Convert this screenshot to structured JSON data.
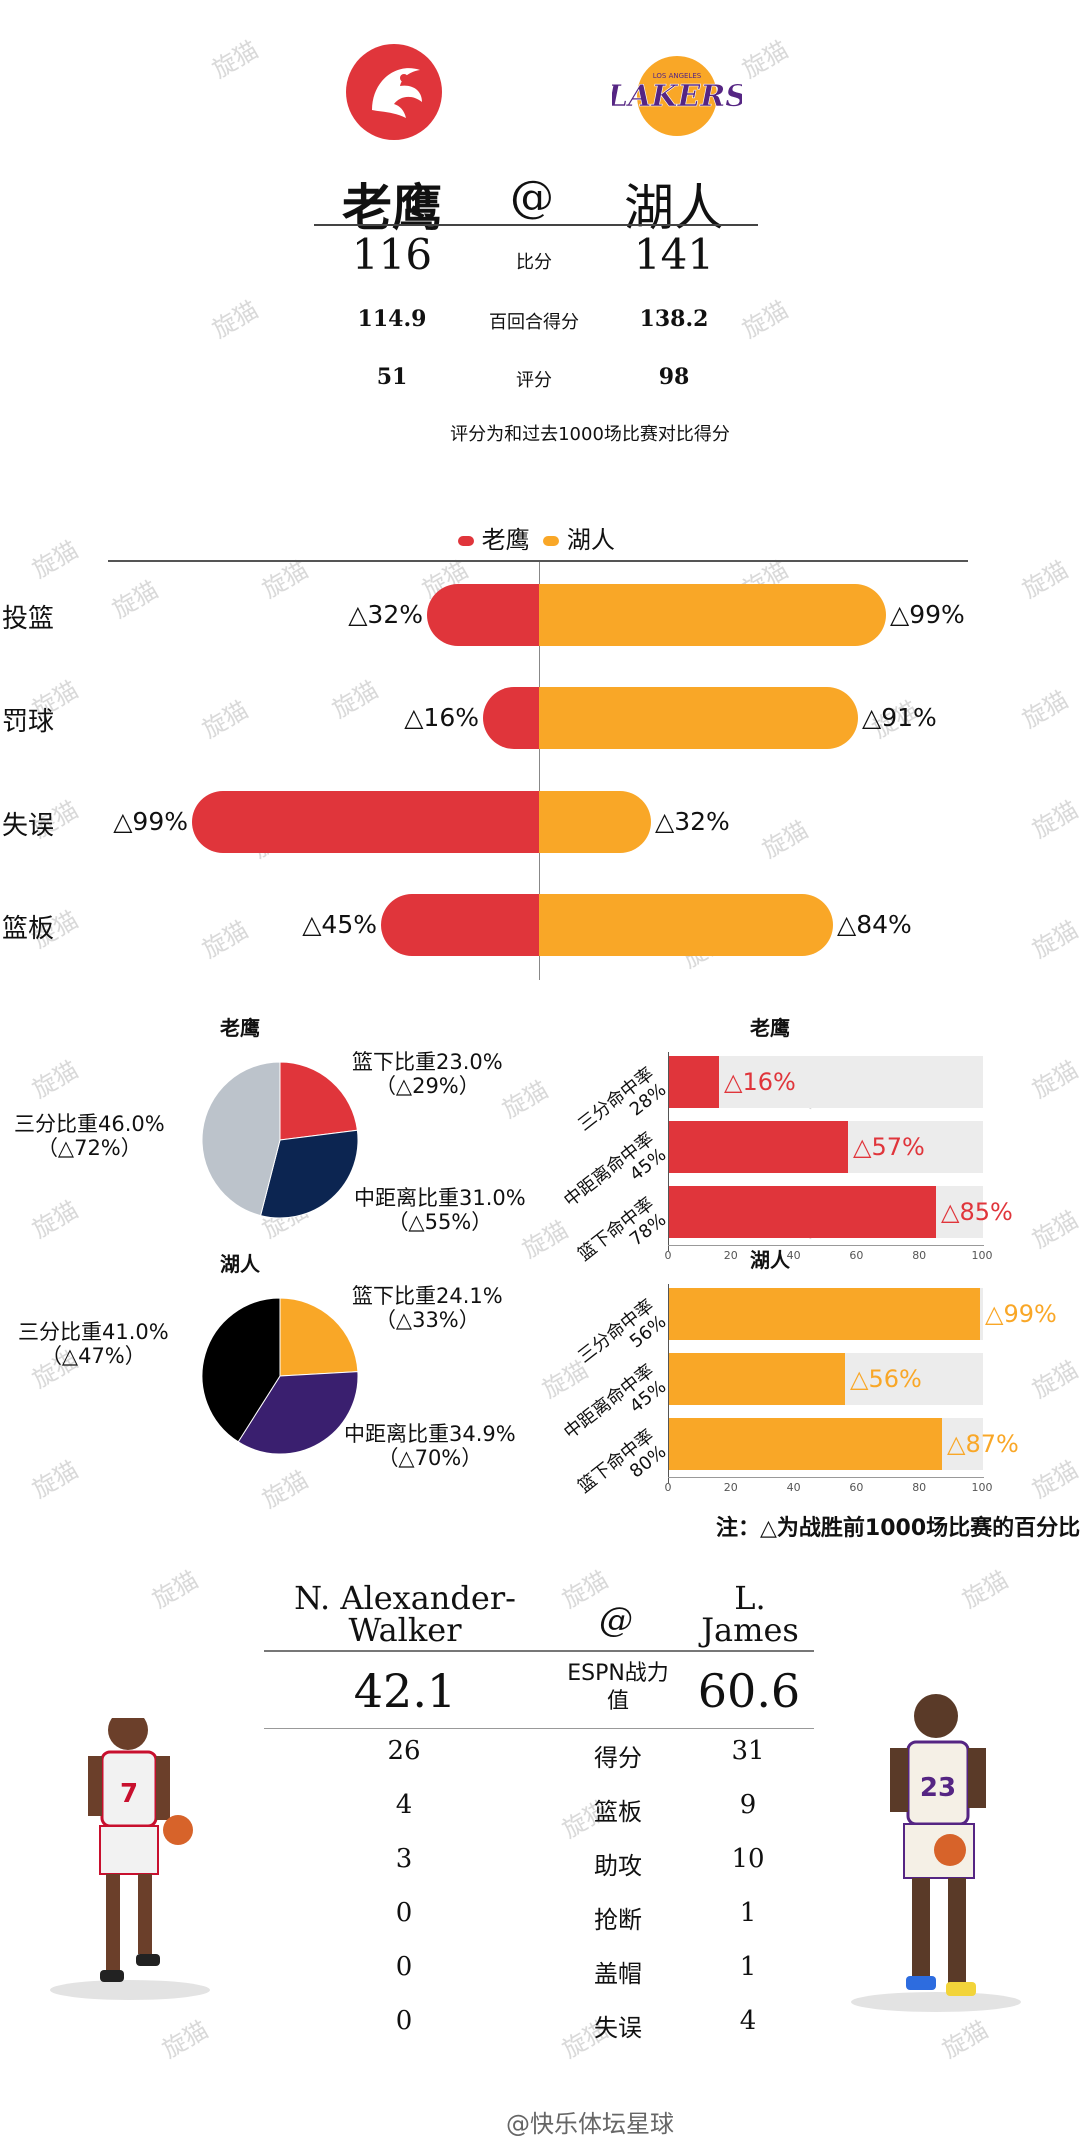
{
  "header": {
    "team_left": "老鹰",
    "at": "@",
    "team_right": "湖人",
    "logo_right_text": "LAKERS",
    "logo_right_small": "LOS ANGELES",
    "rows": [
      {
        "left": "116",
        "label": "比分",
        "right": "141"
      },
      {
        "left": "114.9",
        "label": "百回合得分",
        "right": "138.2"
      },
      {
        "left": "51",
        "label": "评分",
        "right": "98"
      }
    ],
    "note": "评分为和过去1000场比赛对比得分",
    "colors": {
      "hawks": "#e0353b",
      "lakers": "#f9a727",
      "lakers_purple": "#552583"
    }
  },
  "watermark": "旋猫",
  "chart_data": [
    {
      "type": "bar",
      "subtype": "diverging",
      "legend": [
        "老鹰",
        "湖人"
      ],
      "legend_placement": "top",
      "categories": [
        "投篮",
        "罚球",
        "失误",
        "篮板"
      ],
      "series": [
        {
          "name": "老鹰",
          "values": [
            32,
            16,
            99,
            45
          ],
          "labels": [
            "△32%",
            "△16%",
            "△99%",
            "△45%"
          ],
          "color": "#e0353b"
        },
        {
          "name": "湖人",
          "values": [
            99,
            91,
            32,
            84
          ],
          "labels": [
            "△99%",
            "△91%",
            "△32%",
            "△84%"
          ],
          "color": "#f9a727"
        }
      ]
    },
    {
      "type": "pie",
      "title": "老鹰",
      "slices": [
        {
          "label": "篮下比重23.0%",
          "sub": "（△29%）",
          "value": 23.0,
          "color": "#e0353b"
        },
        {
          "label": "中距离比重31.0%",
          "sub": "（△55%）",
          "value": 31.0,
          "color": "#0c2551"
        },
        {
          "label": "三分比重46.0%",
          "sub": "（△72%）",
          "value": 46.0,
          "color": "#bcc3cb"
        }
      ]
    },
    {
      "type": "bar",
      "orientation": "horizontal",
      "title": "老鹰",
      "categories": [
        "三分命中率28%",
        "中距离命中率45%",
        "篮下命中率78%"
      ],
      "values": [
        16,
        57,
        85
      ],
      "labels": [
        "△16%",
        "△57%",
        "△85%"
      ],
      "xlim": [
        0,
        100
      ],
      "ticks": [
        "0",
        "20",
        "40",
        "60",
        "80",
        "100"
      ],
      "color": "#e0353b"
    },
    {
      "type": "pie",
      "title": "湖人",
      "slices": [
        {
          "label": "篮下比重24.1%",
          "sub": "（△33%）",
          "value": 24.1,
          "color": "#f9a727"
        },
        {
          "label": "中距离比重34.9%",
          "sub": "（△70%）",
          "value": 34.9,
          "color": "#3a1f6f"
        },
        {
          "label": "三分比重41.0%",
          "sub": "（△47%）",
          "value": 41.0,
          "color": "#000000"
        }
      ]
    },
    {
      "type": "bar",
      "orientation": "horizontal",
      "title": "湖人",
      "categories": [
        "三分命中率56%",
        "中距离命中率45%",
        "篮下命中率80%"
      ],
      "values": [
        99,
        56,
        87
      ],
      "labels": [
        "△99%",
        "△56%",
        "△87%"
      ],
      "xlim": [
        0,
        100
      ],
      "ticks": [
        "0",
        "20",
        "40",
        "60",
        "80",
        "100"
      ],
      "color": "#f9a727"
    }
  ],
  "small_charts_note": "注：△为战胜前1000场比赛的百分比",
  "players": {
    "left_name": "N. Alexander-Walker",
    "left_name_line1": "N. Alexander-",
    "left_name_line2": "Walker",
    "at": "@",
    "right_name_line1": "L.",
    "right_name_line2": "James",
    "espn_label": "ESPN战力值",
    "espn_label_line1": "ESPN战力",
    "espn_label_line2": "值",
    "espn_left": "42.1",
    "espn_right": "60.6",
    "left_jersey": "7",
    "right_jersey": "23",
    "stats": [
      {
        "left": "26",
        "label": "得分",
        "right": "31"
      },
      {
        "left": "4",
        "label": "篮板",
        "right": "9"
      },
      {
        "left": "3",
        "label": "助攻",
        "right": "10"
      },
      {
        "left": "0",
        "label": "抢断",
        "right": "1"
      },
      {
        "left": "0",
        "label": "盖帽",
        "right": "1"
      },
      {
        "left": "0",
        "label": "失误",
        "right": "4"
      }
    ]
  },
  "footer": "@快乐体坛星球"
}
